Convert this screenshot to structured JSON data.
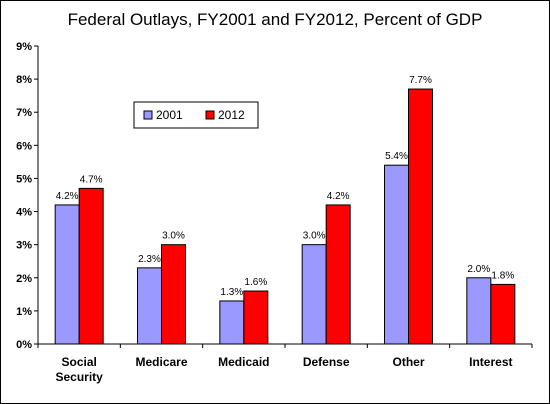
{
  "chart_data": {
    "type": "bar",
    "title": "Federal Outlays, FY2001 and FY2012, Percent of GDP",
    "categories": [
      "Social Security",
      "Medicare",
      "Medicaid",
      "Defense",
      "Other",
      "Interest"
    ],
    "category_lines": [
      [
        "Social",
        "Security"
      ],
      [
        "Medicare"
      ],
      [
        "Medicaid"
      ],
      [
        "Defense"
      ],
      [
        "Other"
      ],
      [
        "Interest"
      ]
    ],
    "series": [
      {
        "name": "2001",
        "values": [
          4.2,
          2.3,
          1.3,
          3.0,
          5.4,
          2.0
        ],
        "labels": [
          "4.2%",
          "2.3%",
          "1.3%",
          "3.0%",
          "5.4%",
          "2.0%"
        ],
        "color": "#9999ff"
      },
      {
        "name": "2012",
        "values": [
          4.7,
          3.0,
          1.6,
          4.2,
          7.7,
          1.8
        ],
        "labels": [
          "4.7%",
          "3.0%",
          "1.6%",
          "4.2%",
          "7.7%",
          "1.8%"
        ],
        "color": "#ff0000"
      }
    ],
    "ylim": [
      0,
      9
    ],
    "yticks": [
      "0%",
      "1%",
      "2%",
      "3%",
      "4%",
      "5%",
      "6%",
      "7%",
      "8%",
      "9%"
    ],
    "xlabel": "",
    "ylabel": "",
    "grid": false,
    "legend": "upper-left-inside"
  }
}
